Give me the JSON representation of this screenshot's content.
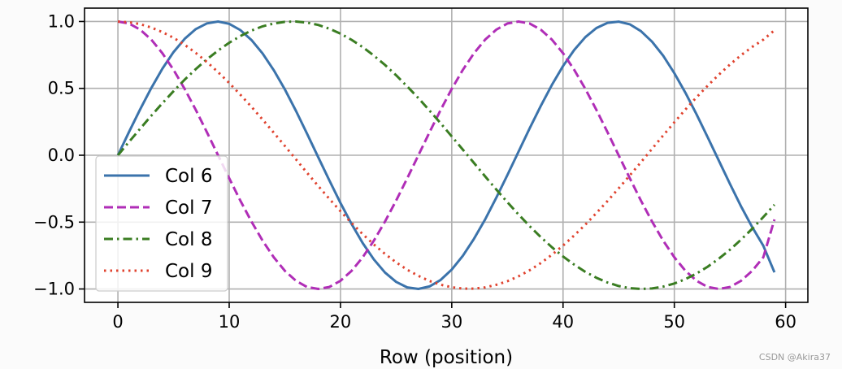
{
  "chart_data": {
    "type": "line",
    "xlabel": "Row (position)",
    "ylabel": "",
    "xlim": [
      -3,
      62
    ],
    "ylim": [
      -1.1,
      1.1
    ],
    "xticks": [
      0,
      10,
      20,
      30,
      40,
      50,
      60
    ],
    "yticks": [
      -1.0,
      -0.5,
      0.0,
      0.5,
      1.0
    ],
    "xtick_labels": [
      "0",
      "10",
      "20",
      "30",
      "40",
      "50",
      "60"
    ],
    "ytick_labels": [
      "−1.0",
      "−0.5",
      "0.0",
      "0.5",
      "1.0"
    ],
    "grid": true,
    "legend_position": "lower-left",
    "series": [
      {
        "name": "Col 6",
        "color": "#3b73ab",
        "style": "solid",
        "x": [
          0,
          1,
          2,
          3,
          4,
          5,
          6,
          7,
          8,
          9,
          10,
          11,
          12,
          13,
          14,
          15,
          16,
          17,
          18,
          19,
          20,
          21,
          22,
          23,
          24,
          25,
          26,
          27,
          28,
          29,
          30,
          31,
          32,
          33,
          34,
          35,
          36,
          37,
          38,
          39,
          40,
          41,
          42,
          43,
          44,
          45,
          46,
          47,
          48,
          49,
          50,
          51,
          52,
          53,
          54,
          55,
          56,
          57,
          58,
          59
        ],
        "y": [
          0.0,
          0.175,
          0.344,
          0.503,
          0.647,
          0.771,
          0.87,
          0.943,
          0.986,
          1.0,
          0.983,
          0.936,
          0.862,
          0.761,
          0.636,
          0.492,
          0.331,
          0.161,
          -0.014,
          -0.188,
          -0.357,
          -0.514,
          -0.657,
          -0.779,
          -0.877,
          -0.947,
          -0.988,
          -1.0,
          -0.981,
          -0.932,
          -0.855,
          -0.752,
          -0.625,
          -0.48,
          -0.318,
          -0.148,
          0.027,
          0.201,
          0.369,
          0.526,
          0.667,
          0.787,
          0.883,
          0.951,
          0.99,
          0.999,
          0.979,
          0.928,
          0.849,
          0.744,
          0.614,
          0.467,
          0.305,
          0.134,
          -0.041,
          -0.215,
          -0.382,
          -0.537,
          -0.677,
          -0.876
        ]
      },
      {
        "name": "Col 7",
        "color": "#b02eb7",
        "style": "dashed",
        "x": [
          0,
          1,
          2,
          3,
          4,
          5,
          6,
          7,
          8,
          9,
          10,
          11,
          12,
          13,
          14,
          15,
          16,
          17,
          18,
          19,
          20,
          21,
          22,
          23,
          24,
          25,
          26,
          27,
          28,
          29,
          30,
          31,
          32,
          33,
          34,
          35,
          36,
          37,
          38,
          39,
          40,
          41,
          42,
          43,
          44,
          45,
          46,
          47,
          48,
          49,
          50,
          51,
          52,
          53,
          54,
          55,
          56,
          57,
          58,
          59
        ],
        "y": [
          1.0,
          0.985,
          0.939,
          0.864,
          0.763,
          0.639,
          0.496,
          0.339,
          0.172,
          0.0,
          -0.172,
          -0.339,
          -0.496,
          -0.639,
          -0.763,
          -0.864,
          -0.939,
          -0.985,
          -1.0,
          -0.985,
          -0.939,
          -0.864,
          -0.763,
          -0.639,
          -0.496,
          -0.339,
          -0.172,
          0.0,
          0.172,
          0.339,
          0.496,
          0.639,
          0.763,
          0.864,
          0.939,
          0.985,
          1.0,
          0.985,
          0.939,
          0.864,
          0.763,
          0.639,
          0.496,
          0.339,
          0.172,
          0.0,
          -0.172,
          -0.339,
          -0.496,
          -0.639,
          -0.763,
          -0.864,
          -0.939,
          -0.985,
          -1.0,
          -0.985,
          -0.939,
          -0.864,
          -0.763,
          -0.48
        ]
      },
      {
        "name": "Col 8",
        "color": "#3a7d22",
        "style": "dashdot",
        "x": [
          0,
          1,
          2,
          3,
          4,
          5,
          6,
          7,
          8,
          9,
          10,
          11,
          12,
          13,
          14,
          15,
          16,
          17,
          18,
          19,
          20,
          21,
          22,
          23,
          24,
          25,
          26,
          27,
          28,
          29,
          30,
          31,
          32,
          33,
          34,
          35,
          36,
          37,
          38,
          39,
          40,
          41,
          42,
          43,
          44,
          45,
          46,
          47,
          48,
          49,
          50,
          51,
          52,
          53,
          54,
          55,
          56,
          57,
          58,
          59
        ],
        "y": [
          0.0,
          0.1,
          0.199,
          0.296,
          0.389,
          0.479,
          0.565,
          0.644,
          0.717,
          0.783,
          0.841,
          0.891,
          0.932,
          0.964,
          0.985,
          0.997,
          1.0,
          0.992,
          0.974,
          0.946,
          0.909,
          0.863,
          0.808,
          0.745,
          0.675,
          0.598,
          0.514,
          0.427,
          0.334,
          0.239,
          0.141,
          0.042,
          -0.058,
          -0.158,
          -0.256,
          -0.351,
          -0.443,
          -0.53,
          -0.612,
          -0.688,
          -0.757,
          -0.818,
          -0.872,
          -0.916,
          -0.952,
          -0.978,
          -0.994,
          -1.0,
          -0.996,
          -0.982,
          -0.959,
          -0.926,
          -0.884,
          -0.833,
          -0.773,
          -0.706,
          -0.631,
          -0.55,
          -0.462,
          -0.37
        ]
      },
      {
        "name": "Col 9",
        "color": "#e0432f",
        "style": "dotted",
        "x": [
          0,
          1,
          2,
          3,
          4,
          5,
          6,
          7,
          8,
          9,
          10,
          11,
          12,
          13,
          14,
          15,
          16,
          17,
          18,
          19,
          20,
          21,
          22,
          23,
          24,
          25,
          26,
          27,
          28,
          29,
          30,
          31,
          32,
          33,
          34,
          35,
          36,
          37,
          38,
          39,
          40,
          41,
          42,
          43,
          44,
          45,
          46,
          47,
          48,
          49,
          50,
          51,
          52,
          53,
          54,
          55,
          56,
          57,
          58,
          59
        ],
        "y": [
          1.0,
          0.995,
          0.98,
          0.955,
          0.921,
          0.878,
          0.826,
          0.765,
          0.697,
          0.622,
          0.54,
          0.453,
          0.362,
          0.267,
          0.169,
          0.069,
          -0.031,
          -0.131,
          -0.23,
          -0.326,
          -0.419,
          -0.507,
          -0.59,
          -0.667,
          -0.738,
          -0.801,
          -0.856,
          -0.902,
          -0.94,
          -0.968,
          -0.987,
          -0.997,
          -0.997,
          -0.988,
          -0.969,
          -0.942,
          -0.905,
          -0.86,
          -0.806,
          -0.744,
          -0.675,
          -0.6,
          -0.519,
          -0.432,
          -0.342,
          -0.248,
          -0.151,
          -0.052,
          0.048,
          0.148,
          0.246,
          0.342,
          0.434,
          0.521,
          0.603,
          0.679,
          0.748,
          0.81,
          0.864,
          0.935
        ]
      }
    ]
  },
  "watermark": "CSDN @Akira37"
}
